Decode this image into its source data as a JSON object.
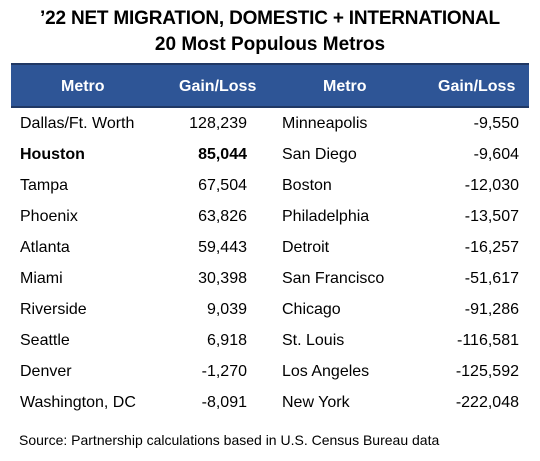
{
  "title": "’22 NET MIGRATION, DOMESTIC + INTERNATIONAL",
  "subtitle": "20 Most Populous Metros",
  "headers": [
    "Metro",
    "Gain/Loss",
    "Metro",
    "Gain/Loss"
  ],
  "source": "Source: Partnership calculations based in U.S. Census Bureau data",
  "chart_data": {
    "type": "table",
    "title": "’22 NET MIGRATION, DOMESTIC + INTERNATIONAL",
    "subtitle": "20 Most Populous Metros",
    "columns": [
      "Metro",
      "Gain/Loss",
      "Metro",
      "Gain/Loss"
    ],
    "highlighted_metro": "Houston",
    "left": [
      {
        "metro": "Dallas/Ft. Worth",
        "value": 128239,
        "display": "128,239"
      },
      {
        "metro": "Houston",
        "value": 85044,
        "display": "85,044"
      },
      {
        "metro": "Tampa",
        "value": 67504,
        "display": "67,504"
      },
      {
        "metro": "Phoenix",
        "value": 63826,
        "display": "63,826"
      },
      {
        "metro": "Atlanta",
        "value": 59443,
        "display": "59,443"
      },
      {
        "metro": "Miami",
        "value": 30398,
        "display": "30,398"
      },
      {
        "metro": "Riverside",
        "value": 9039,
        "display": "9,039"
      },
      {
        "metro": "Seattle",
        "value": 6918,
        "display": "6,918"
      },
      {
        "metro": "Denver",
        "value": -1270,
        "display": "-1,270"
      },
      {
        "metro": "Washington, DC",
        "value": -8091,
        "display": "-8,091"
      }
    ],
    "right": [
      {
        "metro": "Minneapolis",
        "value": -9550,
        "display": "-9,550"
      },
      {
        "metro": "San Diego",
        "value": -9604,
        "display": "-9,604"
      },
      {
        "metro": "Boston",
        "value": -12030,
        "display": "-12,030"
      },
      {
        "metro": "Philadelphia",
        "value": -13507,
        "display": "-13,507"
      },
      {
        "metro": "Detroit",
        "value": -16257,
        "display": "-16,257"
      },
      {
        "metro": "San Francisco",
        "value": -51617,
        "display": "-51,617"
      },
      {
        "metro": "Chicago",
        "value": -91286,
        "display": "-91,286"
      },
      {
        "metro": "St. Louis",
        "value": -116581,
        "display": "-116,581"
      },
      {
        "metro": "Los Angeles",
        "value": -125592,
        "display": "-125,592"
      },
      {
        "metro": "New York",
        "value": -222048,
        "display": "-222,048"
      }
    ]
  }
}
